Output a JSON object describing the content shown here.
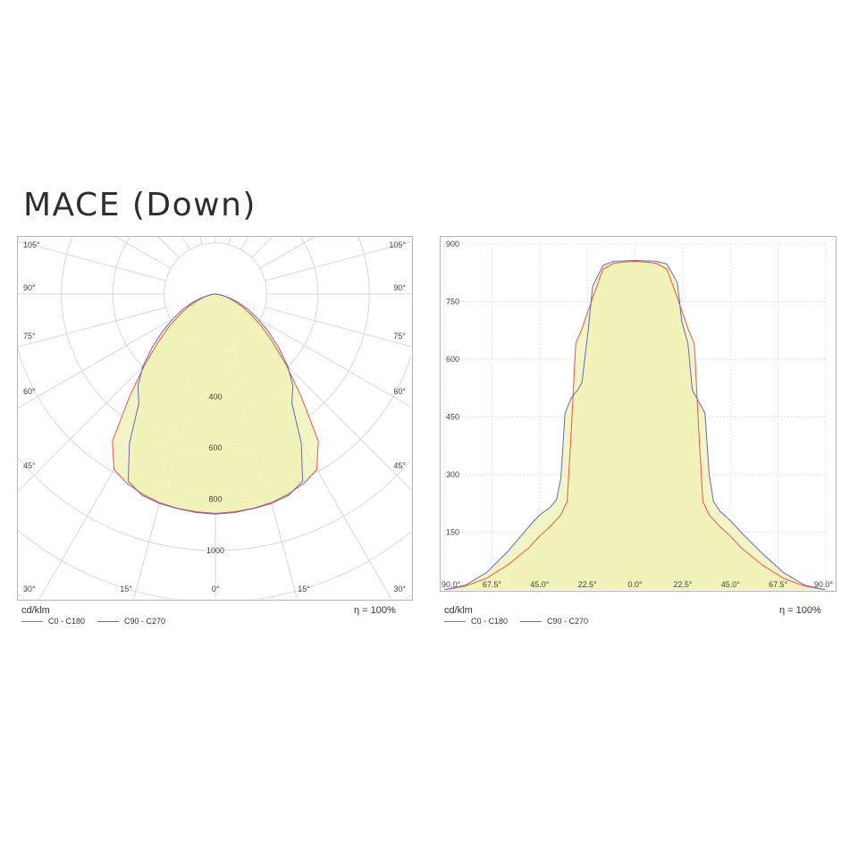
{
  "title": "MACE (Down)",
  "colors": {
    "c0_c180": "#e8554e",
    "c90_c270": "#6868c0",
    "fill": "#f0f2b4",
    "grid": "#d8d8d8"
  },
  "legend": {
    "c0_c180": "C0 - C180",
    "c90_c270": "C90 - C270"
  },
  "unit_label": "cd/klm",
  "efficiency_label": "η = 100%",
  "chart_data": [
    {
      "type": "polar",
      "title": "",
      "units": "cd/klm",
      "radial_ticks": [
        "400",
        "600",
        "800",
        "1000"
      ],
      "radial_tick_values": [
        400,
        600,
        800,
        1000
      ],
      "angle_labels_left": [
        "105°",
        "90°",
        "75°",
        "60°",
        "45°",
        "30°"
      ],
      "angle_labels_right": [
        "105°",
        "90°",
        "75°",
        "60°",
        "45°",
        "30°"
      ],
      "angle_labels_bottom": [
        "15°",
        "0°",
        "15°"
      ],
      "series": [
        {
          "name": "C0 - C180",
          "angles": [
            0,
            5,
            10,
            15,
            20,
            25,
            30,
            35,
            40,
            45,
            50,
            55,
            60,
            65,
            70,
            75,
            80,
            85,
            90
          ],
          "values": [
            855,
            852,
            848,
            842,
            830,
            815,
            790,
            700,
            520,
            390,
            290,
            220,
            160,
            115,
            75,
            45,
            20,
            8,
            0
          ]
        },
        {
          "name": "C90 - C270",
          "angles": [
            0,
            5,
            10,
            15,
            20,
            25,
            30,
            35,
            40,
            45,
            50,
            55,
            60,
            65,
            70,
            75,
            80,
            85,
            90
          ],
          "values": [
            858,
            855,
            850,
            845,
            835,
            805,
            670,
            520,
            470,
            400,
            320,
            250,
            190,
            140,
            95,
            55,
            25,
            8,
            0
          ]
        }
      ]
    },
    {
      "type": "line",
      "title": "",
      "units": "cd/klm",
      "x_tick_labels": [
        "90.0°",
        "67.5°",
        "45.0°",
        "22.5°",
        "0.0°",
        "22.5°",
        "45.0°",
        "67.5°",
        "90.0°"
      ],
      "y_ticks": [
        150,
        300,
        450,
        600,
        750,
        900
      ],
      "ylim": [
        0,
        900
      ],
      "x_range_deg": [
        -90,
        90
      ],
      "series": [
        {
          "name": "C0 - C180",
          "x": [
            -90,
            -80,
            -70,
            -60,
            -50,
            -45,
            -40,
            -35,
            -32,
            -30,
            -28,
            -25,
            -20,
            -15,
            -10,
            -5,
            0,
            5,
            10,
            15,
            20,
            25,
            28,
            30,
            32,
            35,
            40,
            45,
            50,
            60,
            70,
            80,
            90
          ],
          "y": [
            0,
            10,
            30,
            65,
            110,
            140,
            165,
            195,
            230,
            420,
            640,
            680,
            760,
            835,
            850,
            853,
            855,
            853,
            850,
            835,
            760,
            680,
            640,
            420,
            230,
            195,
            165,
            140,
            110,
            65,
            30,
            10,
            0
          ]
        },
        {
          "name": "C90 - C270",
          "x": [
            -90,
            -80,
            -70,
            -60,
            -50,
            -45,
            -40,
            -37,
            -35,
            -33,
            -30,
            -27,
            -25,
            -22,
            -20,
            -15,
            -10,
            -5,
            0,
            5,
            10,
            15,
            20,
            22,
            25,
            27,
            30,
            33,
            35,
            37,
            40,
            45,
            50,
            60,
            70,
            80,
            90
          ],
          "y": [
            0,
            12,
            45,
            100,
            165,
            195,
            215,
            235,
            290,
            460,
            500,
            520,
            540,
            680,
            790,
            845,
            855,
            856,
            857,
            856,
            855,
            848,
            800,
            700,
            640,
            520,
            490,
            460,
            300,
            230,
            205,
            180,
            150,
            95,
            45,
            12,
            0
          ]
        }
      ]
    }
  ]
}
